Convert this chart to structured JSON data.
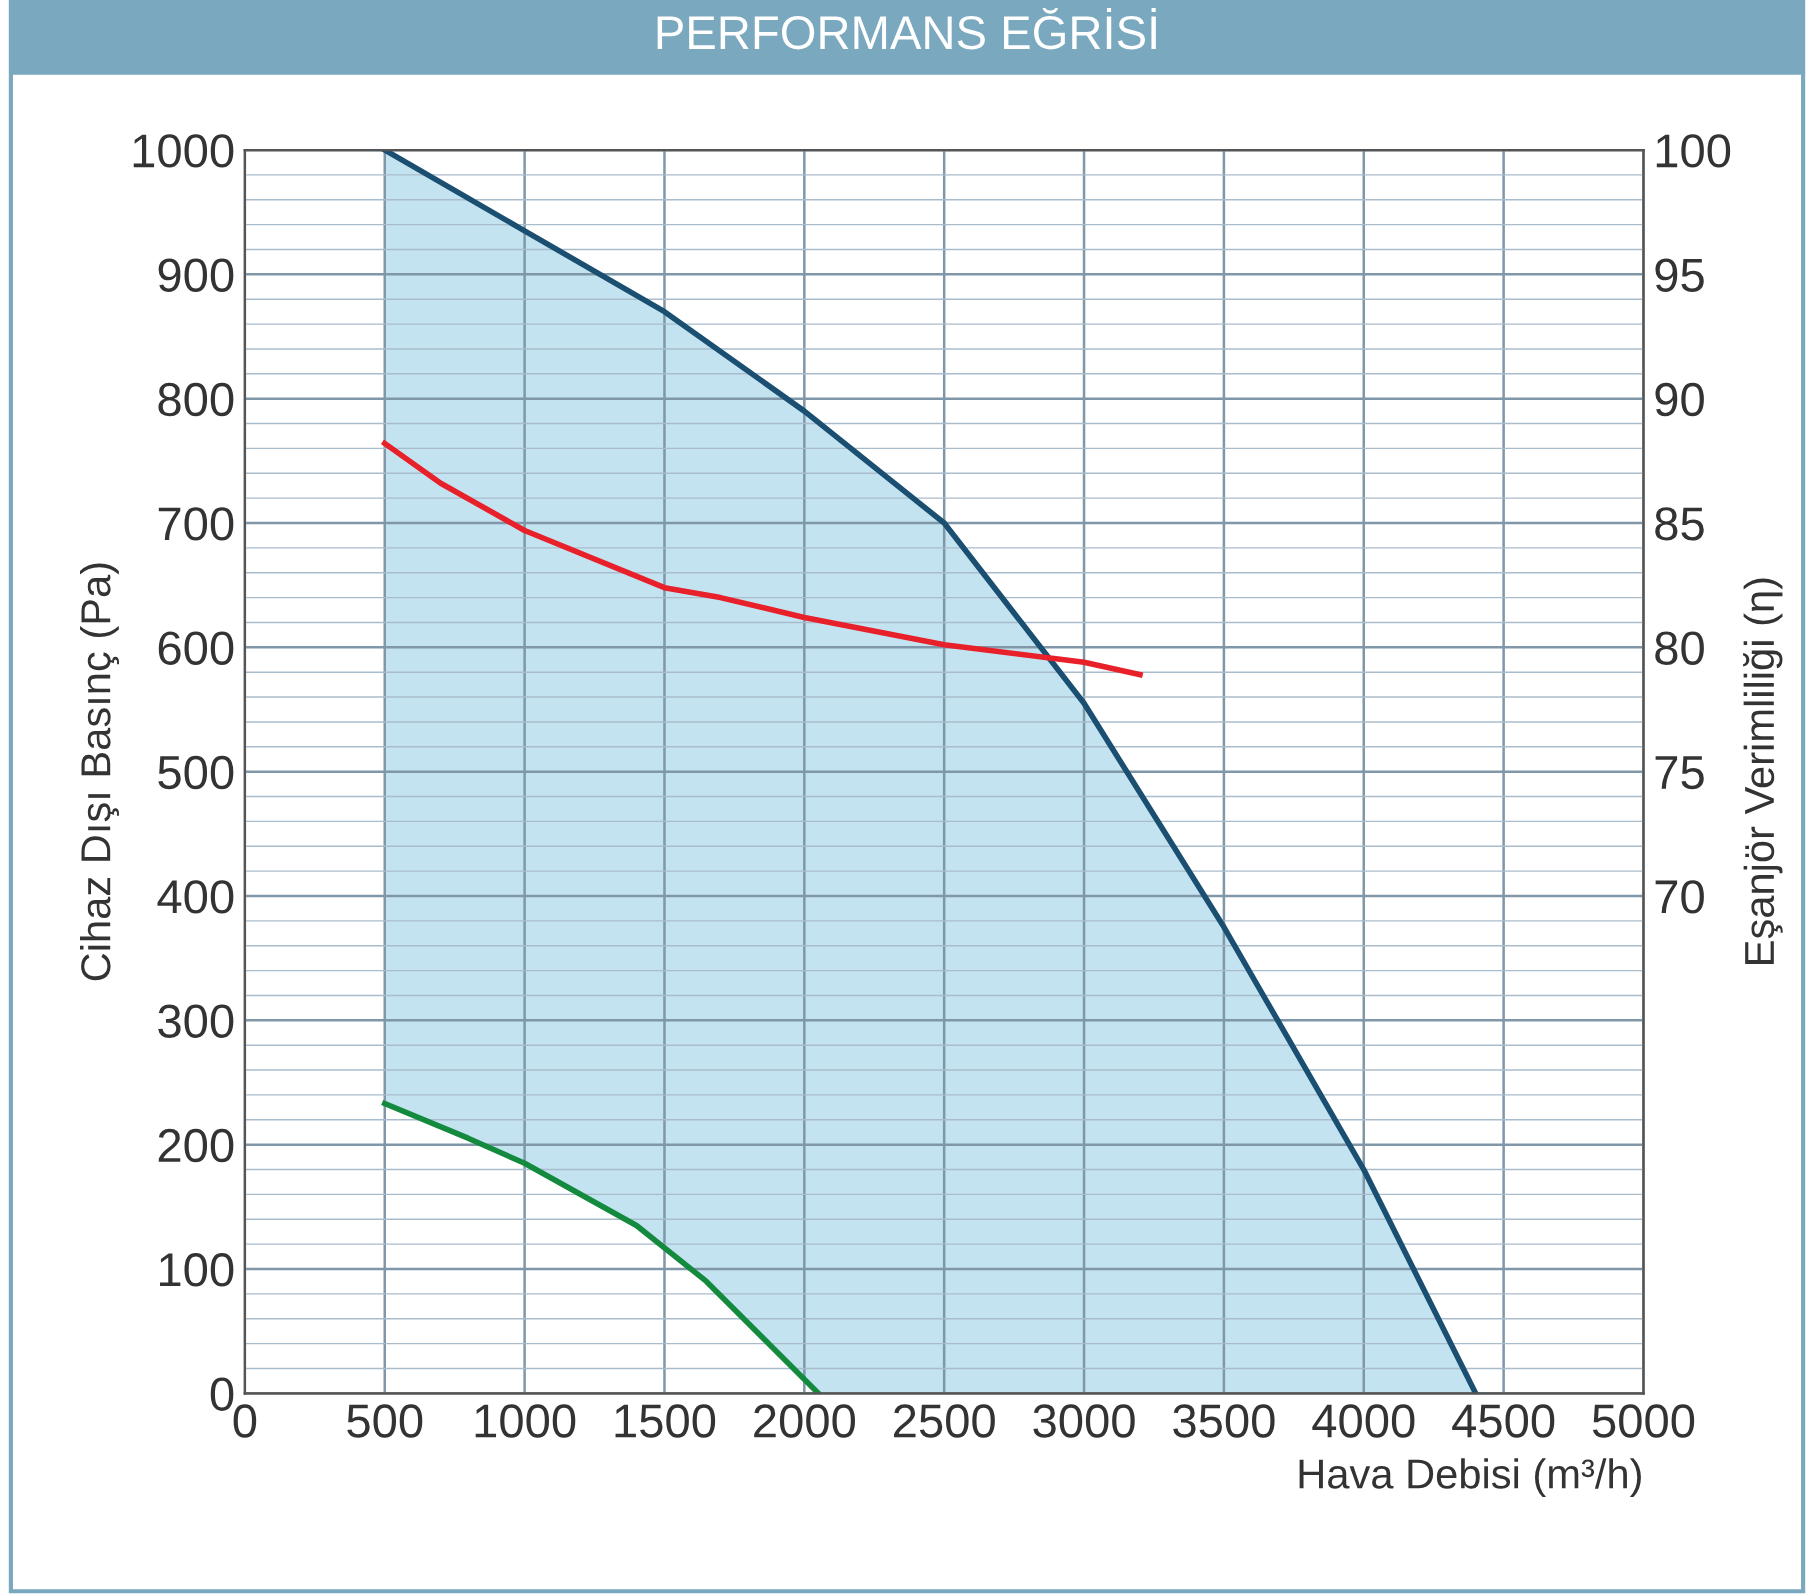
{
  "chart_data": {
    "type": "line",
    "title": "PERFORMANS EĞRİSİ",
    "xlabel": "Hava Debisi (m³/h)",
    "ylabel": "Cihaz Dışı Basınç (Pa)",
    "y2label": "Eşanjör Verimliliği (η)",
    "xlim": [
      0,
      5000
    ],
    "xticks": [
      0,
      500,
      1000,
      1500,
      2000,
      2500,
      3000,
      3500,
      4000,
      4500,
      5000
    ],
    "ylim": [
      0,
      1000
    ],
    "yticks": [
      0,
      100,
      200,
      300,
      400,
      500,
      600,
      700,
      800,
      900,
      1000
    ],
    "y2lim": [
      50,
      100
    ],
    "y2ticks": [
      70,
      75,
      80,
      85,
      90,
      95,
      100
    ],
    "grid": true,
    "marker": "none",
    "line_style": "solid",
    "series": [
      {
        "color": "#1b4f72",
        "x": [
          500,
          1000,
          1500,
          2000,
          2500,
          3000,
          3500,
          4000,
          4400
        ],
        "values": [
          1000,
          935,
          870,
          790,
          700,
          555,
          375,
          180,
          0
        ],
        "type": "area"
      },
      {
        "color": "#e8202a",
        "axis": "y2",
        "x": [
          500,
          700,
          1000,
          1500,
          1700,
          2000,
          2500,
          3000,
          3200
        ],
        "values": [
          88.2,
          86.6,
          84.7,
          82.4,
          82.0,
          81.2,
          80.1,
          79.4,
          78.9
        ]
      },
      {
        "color": "#138a3e",
        "x": [
          500,
          800,
          1000,
          1400,
          1650,
          2050
        ],
        "values": [
          233,
          205,
          185,
          135,
          90,
          0
        ],
        "type": "area"
      }
    ]
  }
}
